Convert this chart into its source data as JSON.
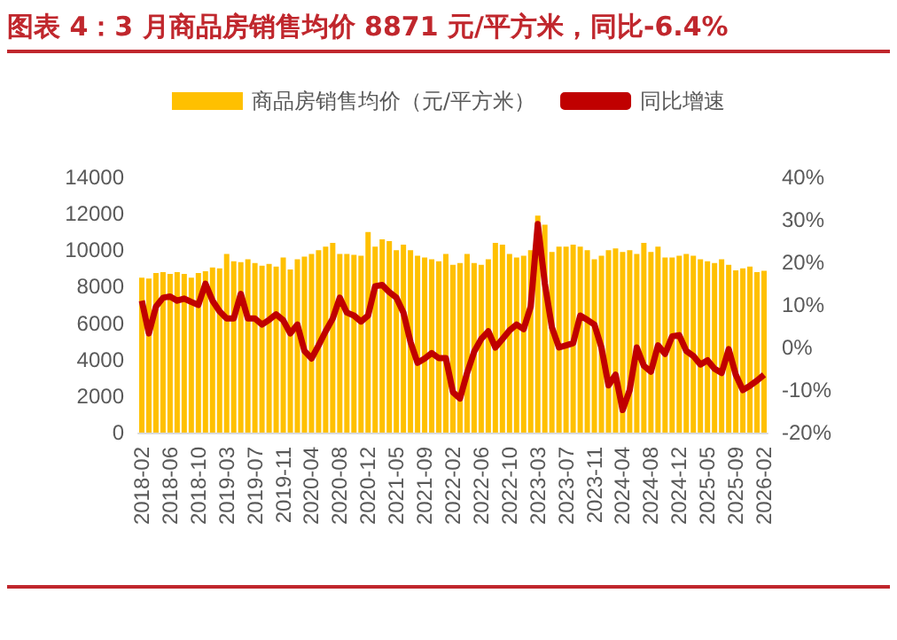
{
  "chart_data": {
    "type": "bar",
    "title": "图表 4：3 月商品房销售均价 8871 元/平方米，同比-6.4%",
    "categories": [
      "2018-02",
      null,
      null,
      null,
      "2018-06",
      null,
      null,
      null,
      "2018-10",
      null,
      null,
      null,
      "2019-03",
      null,
      null,
      null,
      "2019-07",
      null,
      null,
      null,
      "2019-11",
      null,
      null,
      null,
      "2020-04",
      null,
      null,
      null,
      "2020-08",
      null,
      null,
      null,
      "2020-12",
      null,
      null,
      null,
      "2021-05",
      null,
      null,
      null,
      "2021-09",
      null,
      null,
      null,
      "2022-02",
      null,
      null,
      null,
      "2022-06",
      null,
      null,
      null,
      "2022-10",
      null,
      null,
      null,
      "2023-03",
      null,
      null,
      null,
      "2023-07",
      null,
      null,
      null,
      "2023-11",
      null,
      null,
      null,
      "2024-04",
      null,
      null,
      null,
      "2024-08",
      null,
      null,
      null,
      "2024-12",
      null,
      null,
      null,
      "2025-05",
      null,
      null,
      null,
      "2025-09",
      null,
      null,
      null,
      "2026-02"
    ],
    "series": [
      {
        "name": "商品房销售均价（元/平方米）",
        "color": "#ffc000",
        "values": [
          8500,
          8450,
          8750,
          8800,
          8700,
          8800,
          8700,
          8500,
          8750,
          8850,
          9050,
          9000,
          9800,
          9400,
          9350,
          9500,
          9300,
          9150,
          9250,
          9100,
          9600,
          8950,
          9500,
          9650,
          9800,
          10000,
          10200,
          10400,
          9800,
          9800,
          9750,
          9700,
          11000,
          10200,
          10600,
          10500,
          10000,
          10300,
          10000,
          9700,
          9600,
          9500,
          9400,
          9800,
          9200,
          9300,
          9800,
          9300,
          9200,
          9500,
          10400,
          10300,
          9800,
          9600,
          9700,
          10000,
          11900,
          11400,
          9900,
          10200,
          10200,
          10300,
          10200,
          10000,
          9500,
          9700,
          10000,
          10100,
          9900,
          10000,
          9800,
          10400,
          9900,
          10200,
          9600,
          9600,
          9700,
          9800,
          9700,
          9500,
          9400,
          9300,
          9500,
          9200,
          8900,
          9000,
          9100,
          8800,
          8871
        ]
      },
      {
        "name": "同比增速",
        "type": "line",
        "axis": "y2",
        "color": "#c00000",
        "values": [
          11,
          3.3,
          9.6,
          11.7,
          12,
          11,
          11.5,
          10.7,
          10,
          15,
          11,
          8.5,
          6.8,
          6.8,
          12.6,
          6.8,
          6.8,
          5.4,
          6.5,
          7.8,
          6.4,
          3.3,
          5.4,
          -0.8,
          -2.6,
          0.5,
          3.8,
          6.8,
          11.7,
          8.2,
          7.5,
          6.1,
          7.5,
          14.4,
          14.7,
          13,
          11.7,
          8.2,
          1.3,
          -3.6,
          -2.6,
          -1.3,
          -2.5,
          -2.5,
          -10.5,
          -12,
          -6,
          -1,
          2,
          3.8,
          0,
          2,
          4,
          5.4,
          4.3,
          9.6,
          29,
          15,
          4.7,
          0,
          0.5,
          1,
          7.5,
          6.5,
          5.4,
          0,
          -8.9,
          -6.4,
          -14.7,
          -10,
          0,
          -4.3,
          -5.7,
          0.5,
          -1.5,
          2.6,
          2.9,
          -0.8,
          -2,
          -4,
          -3,
          -5,
          -6,
          -0.4,
          -6.4,
          -10,
          -9,
          -7.8,
          -6.4
        ]
      }
    ],
    "ylim": [
      0,
      14000
    ],
    "yticks": [
      0,
      2000,
      4000,
      6000,
      8000,
      10000,
      12000,
      14000
    ],
    "y2lim": [
      -20,
      40
    ],
    "y2ticks": [
      {
        "value": -20,
        "label": "-20%"
      },
      {
        "value": -10,
        "label": "-10%"
      },
      {
        "value": 0,
        "label": "0%"
      },
      {
        "value": 10,
        "label": "10%"
      },
      {
        "value": 20,
        "label": "20%"
      },
      {
        "value": 30,
        "label": "30%"
      },
      {
        "value": 40,
        "label": "40%"
      }
    ],
    "grid": false,
    "legend": "top",
    "marker": "none",
    "line_style": "solid"
  }
}
